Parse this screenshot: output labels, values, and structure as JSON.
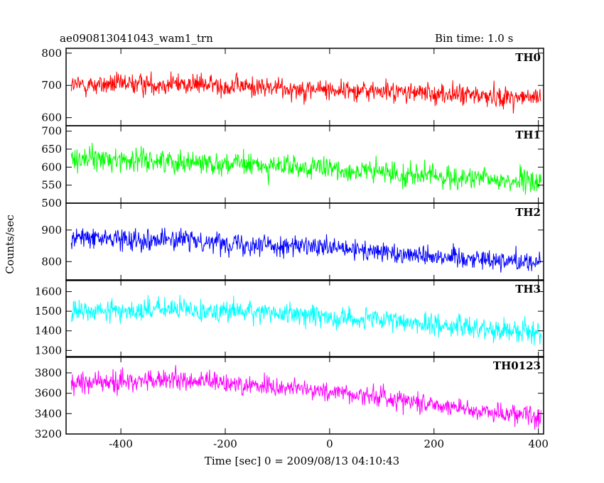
{
  "chart_data": {
    "type": "line",
    "title": "ae090813041043_wam1_trn",
    "bin_time_label": "Bin time: 1.0 s",
    "xlabel": "Time [sec] 0 = 2009/08/13 04:10:43",
    "ylabel": "Counts/sec",
    "xlim": [
      -505,
      410
    ],
    "x_ticks": [
      -400,
      -200,
      0,
      200,
      400
    ],
    "x_step": 1.0,
    "grid": false,
    "panels": [
      {
        "name": "TH0",
        "color": "#ff0000",
        "ylim": [
          575,
          815
        ],
        "y_ticks": [
          600,
          700,
          800
        ],
        "trend": [
          [
            -495,
            700
          ],
          [
            -300,
            706
          ],
          [
            -100,
            692
          ],
          [
            100,
            682
          ],
          [
            300,
            667
          ],
          [
            405,
            660
          ]
        ],
        "noise": 28
      },
      {
        "name": "TH1",
        "color": "#00ff00",
        "ylim": [
          500,
          715
        ],
        "y_ticks": [
          500,
          550,
          600,
          650,
          700
        ],
        "trend": [
          [
            -495,
            625
          ],
          [
            -300,
            617
          ],
          [
            -100,
            602
          ],
          [
            100,
            585
          ],
          [
            300,
            565
          ],
          [
            405,
            558
          ]
        ],
        "noise": 27
      },
      {
        "name": "TH2",
        "color": "#0000ff",
        "ylim": [
          740,
          985
        ],
        "y_ticks": [
          800,
          900
        ],
        "trend": [
          [
            -495,
            875
          ],
          [
            -300,
            870
          ],
          [
            -100,
            852
          ],
          [
            100,
            830
          ],
          [
            300,
            808
          ],
          [
            405,
            798
          ]
        ],
        "noise": 28
      },
      {
        "name": "TH3",
        "color": "#00ffff",
        "ylim": [
          1265,
          1660
        ],
        "y_ticks": [
          1300,
          1400,
          1500,
          1600
        ],
        "trend": [
          [
            -495,
            1495
          ],
          [
            -300,
            1510
          ],
          [
            -100,
            1492
          ],
          [
            100,
            1452
          ],
          [
            300,
            1412
          ],
          [
            405,
            1392
          ]
        ],
        "noise": 48
      },
      {
        "name": "TH0123",
        "color": "#ff00ff",
        "ylim": [
          3200,
          3960
        ],
        "y_ticks": [
          3200,
          3400,
          3600,
          3800
        ],
        "trend": [
          [
            -495,
            3700
          ],
          [
            -300,
            3730
          ],
          [
            -100,
            3665
          ],
          [
            100,
            3565
          ],
          [
            300,
            3420
          ],
          [
            405,
            3380
          ]
        ],
        "noise": 85
      }
    ]
  }
}
